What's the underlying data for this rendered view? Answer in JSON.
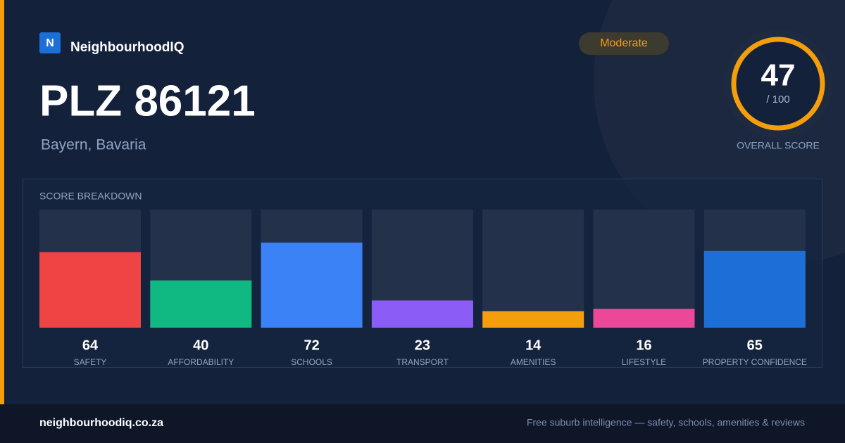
{
  "brand": {
    "logo": "N",
    "name": "NeighbourhoodIQ"
  },
  "header": {
    "title": "PLZ 86121",
    "subtitle": "Bayern, Bavaria",
    "badge": "Moderate"
  },
  "overall": {
    "score": 47,
    "out_of": "/ 100",
    "label": "OVERALL SCORE"
  },
  "breakdown": {
    "type": "bar",
    "title": "SCORE BREAKDOWN",
    "ylim": [
      0,
      100
    ],
    "categories": [
      "SAFETY",
      "AFFORDABILITY",
      "SCHOOLS",
      "TRANSPORT",
      "AMENITIES",
      "LIFESTYLE",
      "PROPERTY CONFIDENCE"
    ],
    "values": [
      64,
      40,
      72,
      23,
      14,
      16,
      65
    ],
    "colors": [
      "#ef4444",
      "#10b981",
      "#3b82f6",
      "#8b5cf6",
      "#f59e0b",
      "#ec4899",
      "#1d6fd8"
    ]
  },
  "footer": {
    "url": "neighbourhoodiq.co.za",
    "tagline": "Free suburb intelligence — safety, schools, amenities & reviews"
  }
}
